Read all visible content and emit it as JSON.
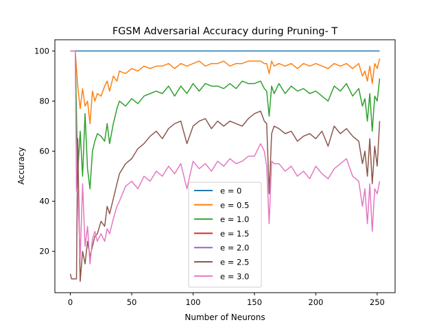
{
  "chart_data": {
    "type": "line",
    "title": "FGSM Adversarial Accuracy during Pruning- T",
    "xlabel": "Number of Neurons",
    "ylabel": "Accuracy",
    "xlim": [
      -12.6,
      264.6
    ],
    "ylim": [
      3.5,
      104.5
    ],
    "xticks": [
      0,
      50,
      100,
      150,
      200,
      250
    ],
    "yticks": [
      20,
      40,
      60,
      80,
      100
    ],
    "grid": false,
    "legend_position": "lower-center",
    "series": [
      {
        "name": "e = 0",
        "color": "#1f77b4",
        "points": [
          [
            0,
            100
          ],
          [
            252,
            100
          ]
        ]
      },
      {
        "name": "e = 0.5",
        "color": "#ff7f0e",
        "points": [
          [
            0,
            100
          ],
          [
            4,
            100
          ],
          [
            6,
            86
          ],
          [
            8,
            77
          ],
          [
            10,
            85
          ],
          [
            12,
            78
          ],
          [
            14,
            80
          ],
          [
            16,
            71
          ],
          [
            18,
            84
          ],
          [
            20,
            80
          ],
          [
            22,
            83
          ],
          [
            25,
            82
          ],
          [
            28,
            86
          ],
          [
            30,
            88
          ],
          [
            32,
            84
          ],
          [
            35,
            90
          ],
          [
            38,
            88
          ],
          [
            40,
            92
          ],
          [
            45,
            91
          ],
          [
            50,
            93
          ],
          [
            55,
            92
          ],
          [
            60,
            94
          ],
          [
            65,
            93
          ],
          [
            70,
            94
          ],
          [
            75,
            94
          ],
          [
            80,
            95
          ],
          [
            85,
            93
          ],
          [
            90,
            95
          ],
          [
            95,
            94
          ],
          [
            100,
            95
          ],
          [
            105,
            96
          ],
          [
            110,
            94
          ],
          [
            115,
            95
          ],
          [
            120,
            95
          ],
          [
            125,
            96
          ],
          [
            130,
            94
          ],
          [
            135,
            95
          ],
          [
            140,
            95
          ],
          [
            145,
            96
          ],
          [
            150,
            96
          ],
          [
            155,
            96
          ],
          [
            158,
            95
          ],
          [
            160,
            95
          ],
          [
            162,
            91
          ],
          [
            164,
            96
          ],
          [
            166,
            94
          ],
          [
            170,
            95
          ],
          [
            175,
            94
          ],
          [
            180,
            95
          ],
          [
            185,
            93
          ],
          [
            190,
            95
          ],
          [
            195,
            94
          ],
          [
            200,
            95
          ],
          [
            205,
            94
          ],
          [
            210,
            93
          ],
          [
            215,
            95
          ],
          [
            220,
            94
          ],
          [
            225,
            95
          ],
          [
            230,
            93
          ],
          [
            235,
            95
          ],
          [
            238,
            90
          ],
          [
            240,
            92
          ],
          [
            242,
            88
          ],
          [
            244,
            94
          ],
          [
            246,
            87
          ],
          [
            248,
            95
          ],
          [
            250,
            93
          ],
          [
            252,
            97
          ]
        ]
      },
      {
        "name": "e = 1.0",
        "color": "#2ca02c",
        "points": [
          [
            0,
            100
          ],
          [
            4,
            100
          ],
          [
            6,
            51
          ],
          [
            8,
            68
          ],
          [
            10,
            50
          ],
          [
            12,
            75
          ],
          [
            14,
            53
          ],
          [
            16,
            45
          ],
          [
            18,
            60
          ],
          [
            20,
            64
          ],
          [
            22,
            67
          ],
          [
            25,
            66
          ],
          [
            28,
            64
          ],
          [
            30,
            71
          ],
          [
            32,
            63
          ],
          [
            35,
            71
          ],
          [
            38,
            77
          ],
          [
            40,
            80
          ],
          [
            45,
            78
          ],
          [
            50,
            81
          ],
          [
            55,
            79
          ],
          [
            60,
            82
          ],
          [
            65,
            83
          ],
          [
            70,
            84
          ],
          [
            75,
            83
          ],
          [
            80,
            86
          ],
          [
            85,
            82
          ],
          [
            90,
            86
          ],
          [
            95,
            83
          ],
          [
            100,
            87
          ],
          [
            105,
            84
          ],
          [
            110,
            87
          ],
          [
            115,
            86
          ],
          [
            120,
            86
          ],
          [
            125,
            85
          ],
          [
            130,
            87
          ],
          [
            135,
            85
          ],
          [
            140,
            88
          ],
          [
            145,
            87
          ],
          [
            150,
            87
          ],
          [
            155,
            88
          ],
          [
            158,
            85
          ],
          [
            160,
            84
          ],
          [
            162,
            74
          ],
          [
            164,
            86
          ],
          [
            166,
            83
          ],
          [
            170,
            87
          ],
          [
            175,
            83
          ],
          [
            180,
            86
          ],
          [
            185,
            84
          ],
          [
            190,
            85
          ],
          [
            195,
            83
          ],
          [
            200,
            84
          ],
          [
            205,
            82
          ],
          [
            210,
            80
          ],
          [
            215,
            86
          ],
          [
            220,
            84
          ],
          [
            225,
            87
          ],
          [
            230,
            82
          ],
          [
            235,
            85
          ],
          [
            238,
            78
          ],
          [
            240,
            81
          ],
          [
            242,
            72
          ],
          [
            244,
            83
          ],
          [
            246,
            68
          ],
          [
            248,
            82
          ],
          [
            250,
            80
          ],
          [
            252,
            89
          ]
        ]
      },
      {
        "name": "e = 1.5",
        "color": "#d62728",
        "points": []
      },
      {
        "name": "e = 2.0",
        "color": "#9467bd",
        "points": []
      },
      {
        "name": "e = 2.5",
        "color": "#8c564b",
        "points": [
          [
            0,
            11
          ],
          [
            1,
            9
          ],
          [
            3,
            9
          ],
          [
            5,
            9
          ],
          [
            6,
            65
          ],
          [
            8,
            8
          ],
          [
            10,
            20
          ],
          [
            12,
            15
          ],
          [
            14,
            24
          ],
          [
            16,
            18
          ],
          [
            18,
            22
          ],
          [
            20,
            26
          ],
          [
            22,
            27
          ],
          [
            25,
            32
          ],
          [
            28,
            30
          ],
          [
            30,
            38
          ],
          [
            32,
            35
          ],
          [
            35,
            41
          ],
          [
            38,
            47
          ],
          [
            40,
            51
          ],
          [
            45,
            55
          ],
          [
            50,
            57
          ],
          [
            55,
            61
          ],
          [
            60,
            63
          ],
          [
            65,
            66
          ],
          [
            70,
            68
          ],
          [
            75,
            65
          ],
          [
            80,
            69
          ],
          [
            85,
            71
          ],
          [
            90,
            72
          ],
          [
            95,
            63
          ],
          [
            100,
            70
          ],
          [
            105,
            72
          ],
          [
            110,
            73
          ],
          [
            115,
            69
          ],
          [
            120,
            72
          ],
          [
            125,
            70
          ],
          [
            130,
            72
          ],
          [
            135,
            71
          ],
          [
            140,
            70
          ],
          [
            145,
            73
          ],
          [
            150,
            75
          ],
          [
            155,
            76
          ],
          [
            158,
            72
          ],
          [
            160,
            71
          ],
          [
            162,
            43
          ],
          [
            164,
            67
          ],
          [
            166,
            70
          ],
          [
            170,
            69
          ],
          [
            175,
            67
          ],
          [
            180,
            68
          ],
          [
            185,
            64
          ],
          [
            190,
            66
          ],
          [
            195,
            67
          ],
          [
            200,
            65
          ],
          [
            205,
            68
          ],
          [
            210,
            62
          ],
          [
            215,
            70
          ],
          [
            220,
            67
          ],
          [
            225,
            69
          ],
          [
            230,
            66
          ],
          [
            235,
            64
          ],
          [
            238,
            55
          ],
          [
            240,
            60
          ],
          [
            242,
            50
          ],
          [
            244,
            65
          ],
          [
            246,
            47
          ],
          [
            248,
            62
          ],
          [
            250,
            54
          ],
          [
            252,
            72
          ]
        ]
      },
      {
        "name": "e = 3.0",
        "color": "#e377c2",
        "points": [
          [
            0,
            100
          ],
          [
            4,
            100
          ],
          [
            5,
            44
          ],
          [
            6,
            45
          ],
          [
            8,
            17
          ],
          [
            10,
            47
          ],
          [
            12,
            22
          ],
          [
            14,
            30
          ],
          [
            16,
            15
          ],
          [
            18,
            25
          ],
          [
            20,
            28
          ],
          [
            22,
            24
          ],
          [
            25,
            27
          ],
          [
            28,
            24
          ],
          [
            30,
            29
          ],
          [
            32,
            27
          ],
          [
            35,
            33
          ],
          [
            38,
            38
          ],
          [
            40,
            40
          ],
          [
            45,
            46
          ],
          [
            50,
            48
          ],
          [
            55,
            45
          ],
          [
            60,
            50
          ],
          [
            65,
            48
          ],
          [
            70,
            52
          ],
          [
            75,
            50
          ],
          [
            80,
            54
          ],
          [
            85,
            51
          ],
          [
            90,
            55
          ],
          [
            95,
            45
          ],
          [
            100,
            56
          ],
          [
            105,
            53
          ],
          [
            110,
            55
          ],
          [
            115,
            52
          ],
          [
            120,
            56
          ],
          [
            125,
            54
          ],
          [
            130,
            57
          ],
          [
            135,
            55
          ],
          [
            140,
            56
          ],
          [
            145,
            58
          ],
          [
            150,
            58
          ],
          [
            155,
            63
          ],
          [
            158,
            60
          ],
          [
            160,
            54
          ],
          [
            162,
            31
          ],
          [
            164,
            56
          ],
          [
            166,
            55
          ],
          [
            170,
            55
          ],
          [
            175,
            52
          ],
          [
            180,
            54
          ],
          [
            185,
            50
          ],
          [
            190,
            52
          ],
          [
            195,
            49
          ],
          [
            200,
            54
          ],
          [
            205,
            51
          ],
          [
            210,
            49
          ],
          [
            215,
            53
          ],
          [
            220,
            55
          ],
          [
            225,
            57
          ],
          [
            230,
            50
          ],
          [
            235,
            48
          ],
          [
            238,
            38
          ],
          [
            240,
            45
          ],
          [
            242,
            31
          ],
          [
            244,
            47
          ],
          [
            246,
            28
          ],
          [
            248,
            45
          ],
          [
            250,
            43
          ],
          [
            252,
            48
          ]
        ]
      }
    ]
  }
}
